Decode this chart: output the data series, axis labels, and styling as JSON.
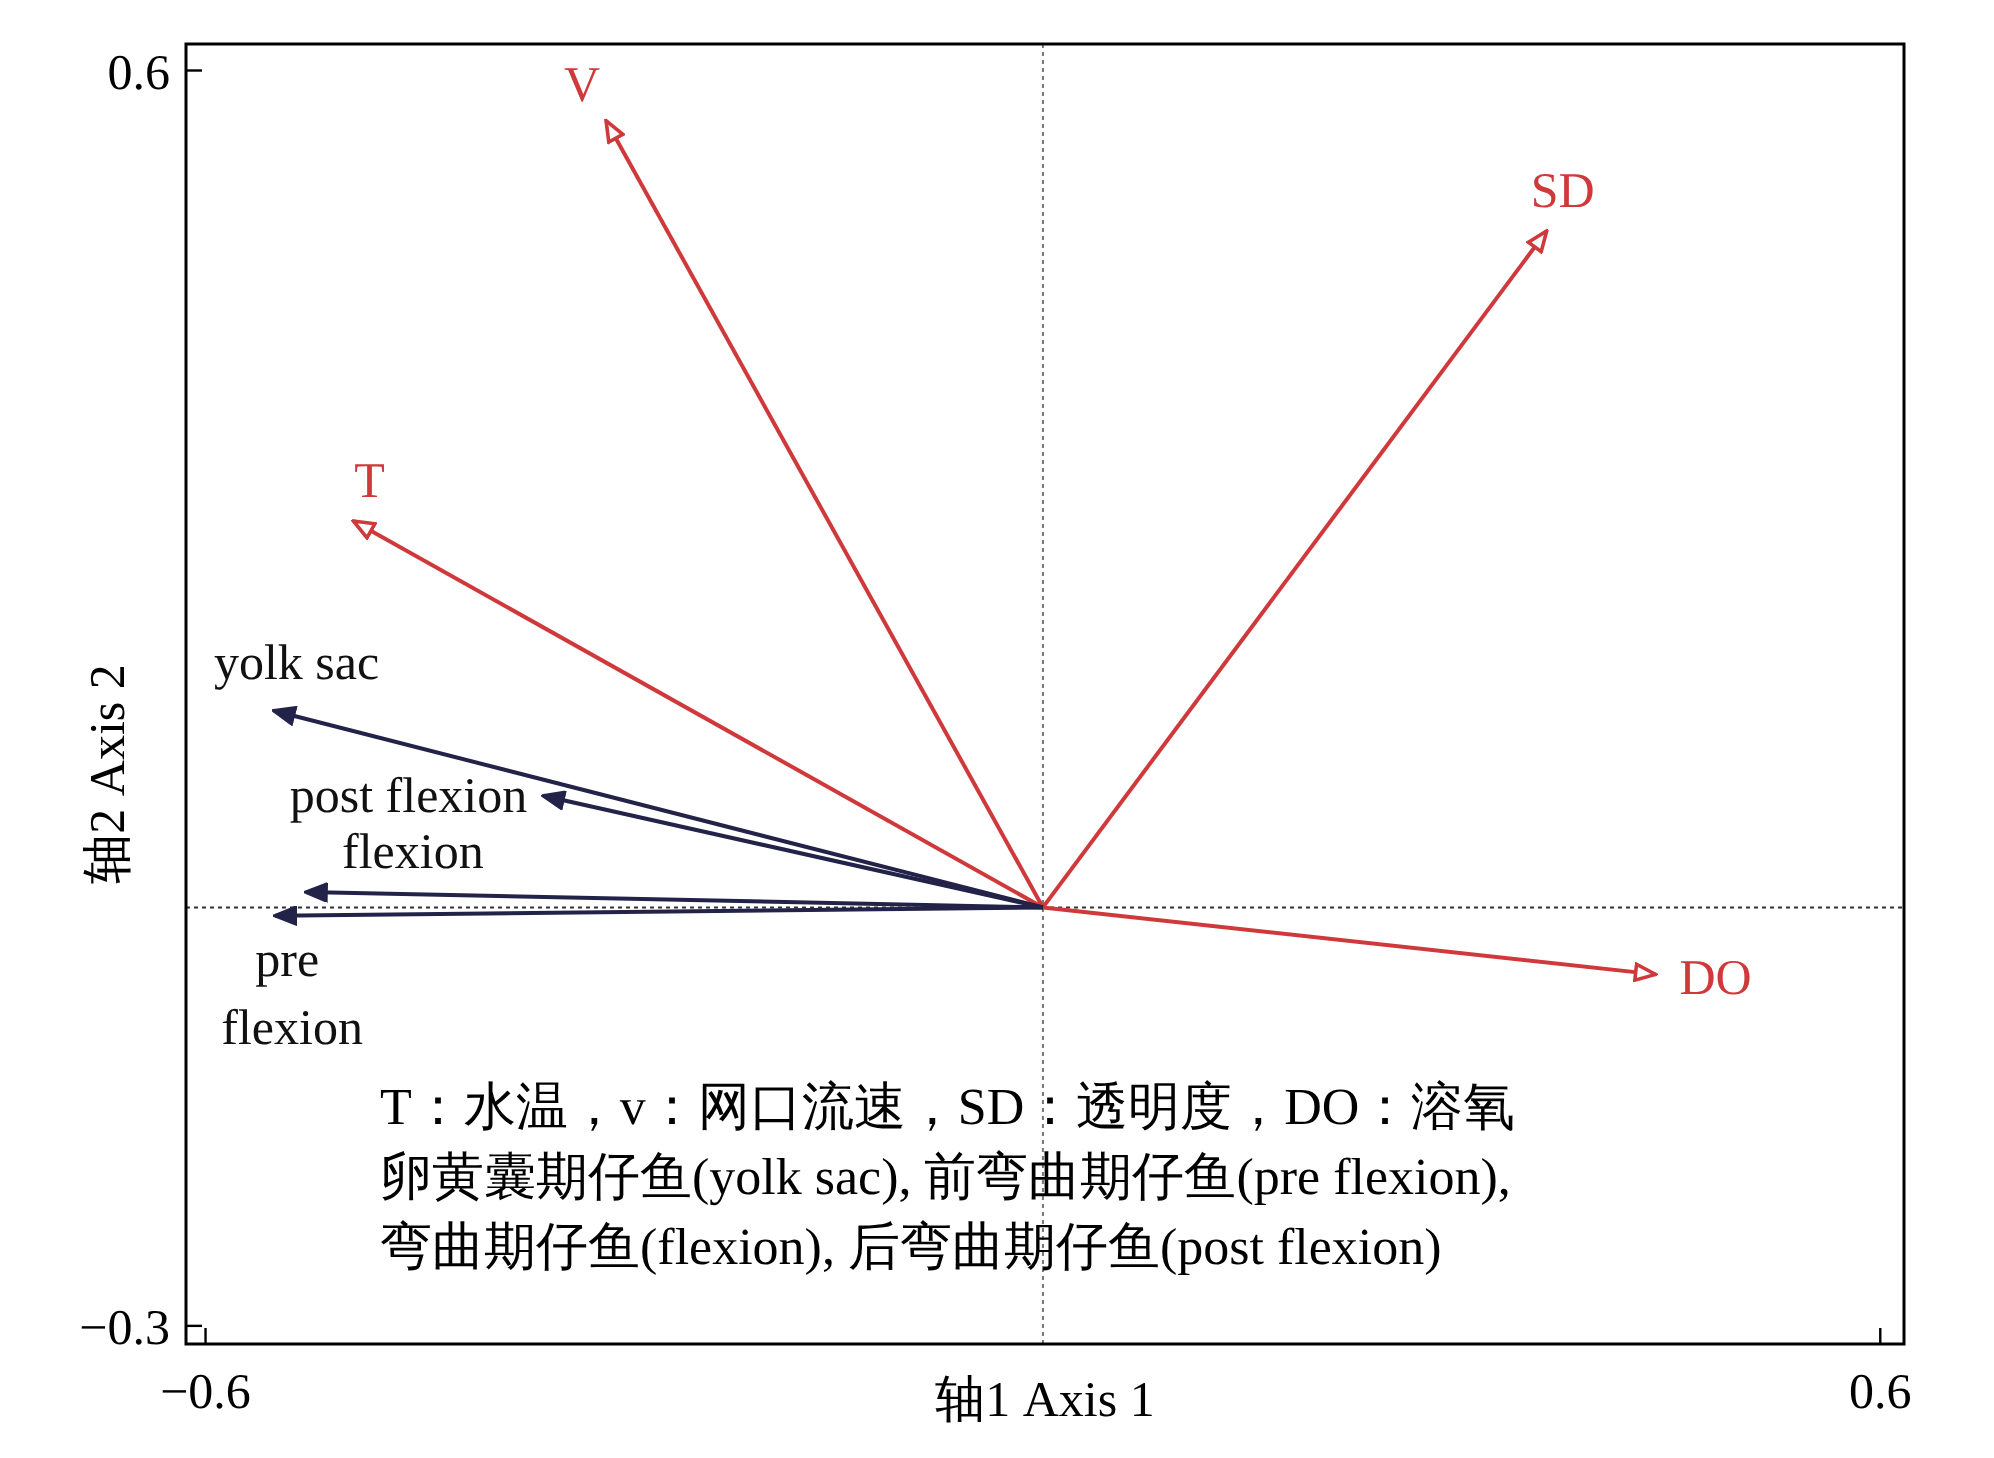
{
  "chart_data": {
    "type": "line",
    "xlabel": "轴1 Axis 1",
    "ylabel": "轴2 Axis 2",
    "xlim": [
      -0.614,
      0.617
    ],
    "ylim": [
      -0.313,
      0.619
    ],
    "xticks": [
      {
        "value": -0.6,
        "label": "−0.6"
      },
      0.6
    ],
    "yticks": [
      {
        "value": -0.3,
        "label": "−0.3"
      },
      0.6
    ],
    "series": [
      {
        "name": "V",
        "color": "#d0393b",
        "x": [
          0,
          -0.313
        ],
        "values": [
          0,
          0.564
        ]
      },
      {
        "name": "SD",
        "color": "#d0393b",
        "x": [
          0,
          0.361
        ],
        "values": [
          0,
          0.485
        ]
      },
      {
        "name": "T",
        "color": "#d0393b",
        "x": [
          0,
          -0.494
        ],
        "values": [
          0,
          0.277
        ]
      },
      {
        "name": "DO",
        "color": "#d0393b",
        "x": [
          0,
          0.439
        ],
        "values": [
          0,
          -0.048
        ]
      },
      {
        "name": "yolk sac",
        "color": "#23234a",
        "x": [
          0,
          -0.551
        ],
        "values": [
          0,
          0.141
        ]
      },
      {
        "name": "post flexion",
        "color": "#23234a",
        "x": [
          0,
          -0.358
        ],
        "values": [
          0,
          0.08
        ]
      },
      {
        "name": "flexion",
        "color": "#23234a",
        "x": [
          0,
          -0.528
        ],
        "values": [
          0,
          0.011
        ]
      },
      {
        "name": "pre flexion",
        "color": "#23234a",
        "x": [
          0,
          -0.55
        ],
        "values": [
          0,
          -0.006
        ]
      }
    ],
    "ref_lines": [
      {
        "axis": "x",
        "value": 0,
        "color": "#777777",
        "line_style": "dotted"
      },
      {
        "axis": "y",
        "value": 0,
        "color": "#333333",
        "line_style": "dotted"
      }
    ],
    "annotations": [
      "T：水温，v：网口流速，SD：透明度，DO：溶氧",
      "卵黄囊期仔鱼(yolk sac), 前弯曲期仔鱼(pre flexion),",
      "弯曲期仔鱼(flexion), 后弯曲期仔鱼(post flexion)"
    ]
  }
}
